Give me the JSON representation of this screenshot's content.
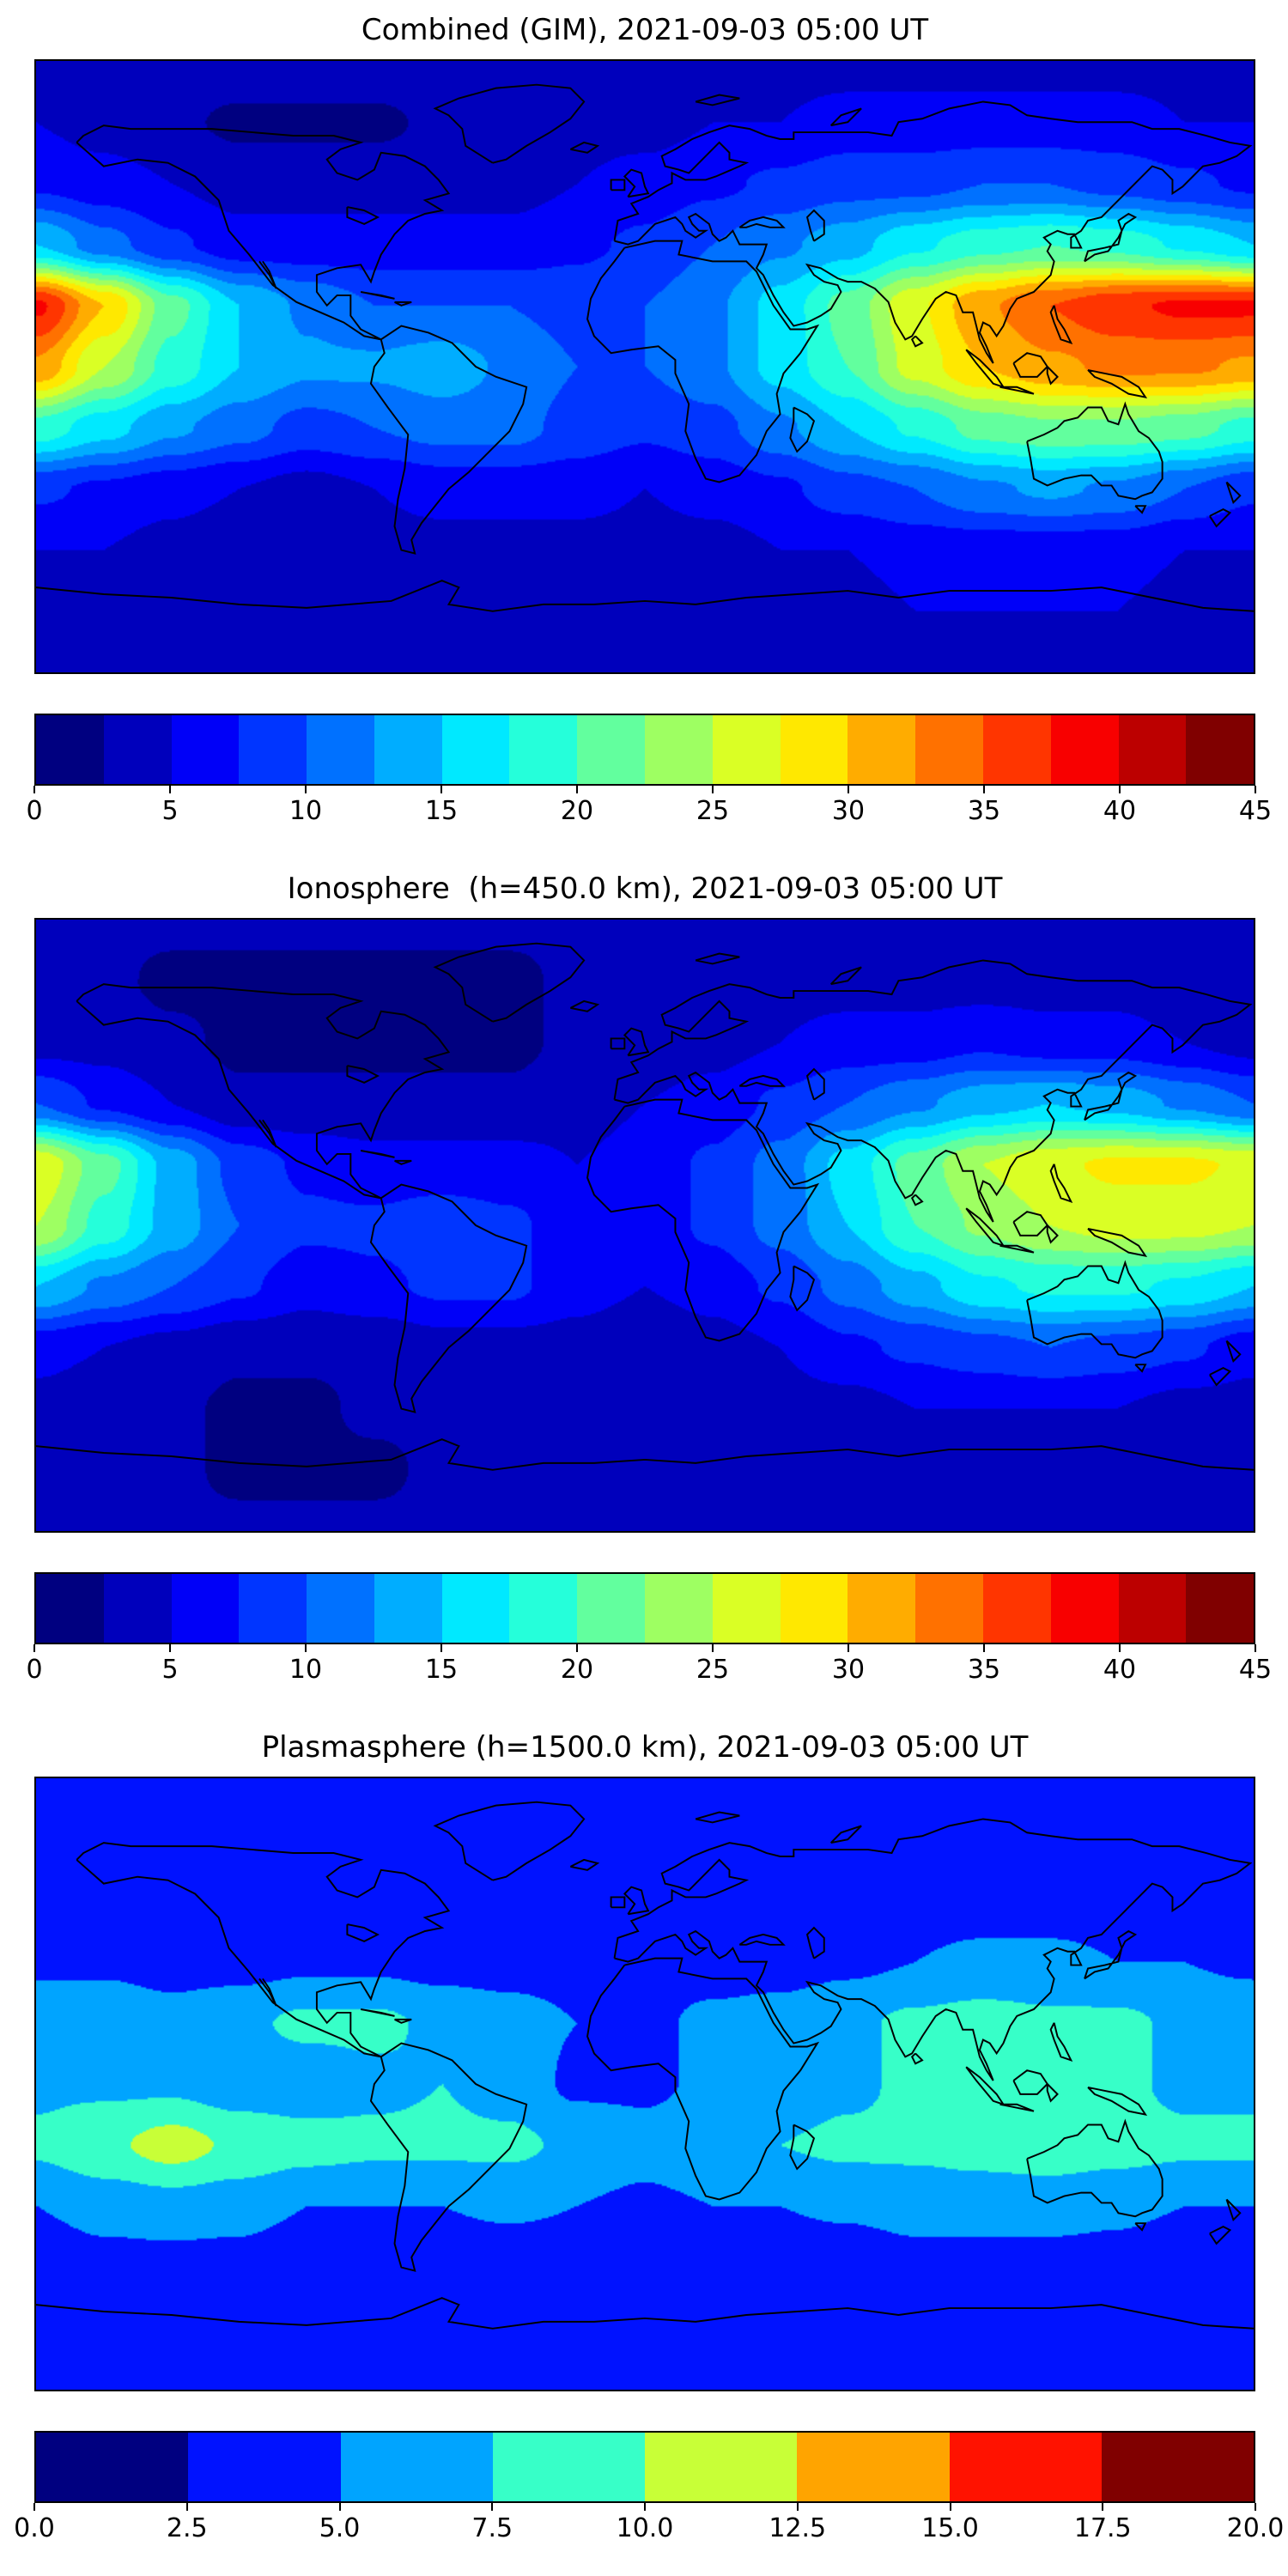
{
  "figure": {
    "background_color": "#ffffff",
    "colormap_name": "jet"
  },
  "chart_data": [
    {
      "type": "heatmap",
      "title": "Combined (GIM), 2021-09-03 05:00 UT",
      "date": "2021-09-03",
      "time_ut": "05:00",
      "projection": "equirectangular",
      "lon_range": [
        -180,
        180
      ],
      "lat_range": [
        -90,
        90
      ],
      "colormap": "jet",
      "vmin": 0,
      "vmax": 45,
      "contour_step": 2.5,
      "colorbar_orientation": "horizontal",
      "colorbar_ticks": [
        0,
        5,
        10,
        15,
        20,
        25,
        30,
        35,
        40,
        45
      ],
      "colorbar_tick_labels": [
        "0",
        "5",
        "10",
        "15",
        "20",
        "25",
        "30",
        "35",
        "40",
        "45"
      ],
      "grid": {
        "lons": [
          -180,
          -160,
          -140,
          -120,
          -100,
          -80,
          -60,
          -40,
          -20,
          0,
          20,
          40,
          60,
          80,
          100,
          120,
          140,
          160,
          180
        ],
        "lats": [
          90,
          72,
          54,
          36,
          18,
          0,
          -18,
          -36,
          -54,
          -72,
          -90
        ],
        "values": [
          [
            4,
            4,
            4,
            4,
            4,
            4,
            4,
            4,
            4,
            4,
            4,
            4,
            4,
            4,
            4,
            4,
            4,
            4,
            4
          ],
          [
            5,
            4,
            3,
            2,
            2,
            2,
            3,
            3,
            4,
            4,
            5,
            5,
            6,
            6,
            6,
            6,
            6,
            5,
            5
          ],
          [
            7,
            6,
            5,
            4,
            4,
            4,
            4,
            4,
            5,
            6,
            7,
            8,
            9,
            9,
            10,
            10,
            9,
            8,
            7
          ],
          [
            15,
            11,
            8,
            6,
            6,
            6,
            6,
            6,
            7,
            8,
            10,
            12,
            14,
            17,
            19,
            20,
            19,
            17,
            15
          ],
          [
            38,
            30,
            21,
            15,
            12,
            10,
            10,
            10,
            9,
            10,
            12,
            16,
            21,
            27,
            32,
            35,
            37,
            38,
            38
          ],
          [
            32,
            25,
            19,
            15,
            13,
            13,
            14,
            12,
            10,
            10,
            12,
            16,
            20,
            26,
            30,
            32,
            33,
            33,
            32
          ],
          [
            19,
            16,
            13,
            11,
            9,
            10,
            11,
            11,
            9,
            8,
            9,
            12,
            15,
            18,
            21,
            22,
            22,
            21,
            19
          ],
          [
            8,
            7,
            6,
            5,
            4,
            5,
            6,
            6,
            6,
            5,
            6,
            7,
            9,
            10,
            12,
            13,
            12,
            10,
            8
          ],
          [
            5,
            5,
            4,
            3,
            3,
            4,
            4,
            4,
            4,
            4,
            4,
            5,
            5,
            6,
            6,
            6,
            6,
            5,
            5
          ],
          [
            4,
            4,
            4,
            3,
            3,
            3,
            4,
            4,
            4,
            4,
            4,
            4,
            4,
            5,
            5,
            5,
            5,
            4,
            4
          ],
          [
            4,
            4,
            4,
            4,
            4,
            4,
            4,
            4,
            4,
            4,
            4,
            4,
            4,
            4,
            4,
            4,
            4,
            4,
            4
          ]
        ]
      }
    },
    {
      "type": "heatmap",
      "title": "Ionosphere  (h=450.0 km), 2021-09-03 05:00 UT",
      "date": "2021-09-03",
      "time_ut": "05:00",
      "altitude_km": 450.0,
      "projection": "equirectangular",
      "lon_range": [
        -180,
        180
      ],
      "lat_range": [
        -90,
        90
      ],
      "colormap": "jet",
      "vmin": 0,
      "vmax": 45,
      "contour_step": 2.5,
      "colorbar_orientation": "horizontal",
      "colorbar_ticks": [
        0,
        5,
        10,
        15,
        20,
        25,
        30,
        35,
        40,
        45
      ],
      "colorbar_tick_labels": [
        "0",
        "5",
        "10",
        "15",
        "20",
        "25",
        "30",
        "35",
        "40",
        "45"
      ],
      "grid": {
        "lons": [
          -180,
          -160,
          -140,
          -120,
          -100,
          -80,
          -60,
          -40,
          -20,
          0,
          20,
          40,
          60,
          80,
          100,
          120,
          140,
          160,
          180
        ],
        "lats": [
          90,
          72,
          54,
          36,
          18,
          0,
          -18,
          -36,
          -54,
          -72,
          -90
        ],
        "values": [
          [
            3,
            3,
            3,
            3,
            3,
            3,
            3,
            3,
            3,
            3,
            3,
            3,
            3,
            3,
            3,
            3,
            3,
            3,
            3
          ],
          [
            3,
            3,
            2,
            2,
            2,
            2,
            2,
            2,
            3,
            3,
            3,
            4,
            4,
            4,
            4,
            4,
            4,
            3,
            3
          ],
          [
            4,
            4,
            3,
            2,
            2,
            2,
            2,
            2,
            3,
            3,
            4,
            5,
            6,
            6,
            7,
            6,
            6,
            5,
            4
          ],
          [
            10,
            7,
            5,
            3,
            3,
            3,
            3,
            3,
            4,
            5,
            6,
            8,
            10,
            12,
            14,
            15,
            14,
            12,
            10
          ],
          [
            27,
            21,
            14,
            9,
            7,
            6,
            6,
            6,
            5,
            6,
            8,
            11,
            16,
            21,
            25,
            27,
            28,
            28,
            27
          ],
          [
            25,
            19,
            14,
            10,
            8,
            8,
            9,
            8,
            6,
            6,
            8,
            11,
            15,
            20,
            23,
            25,
            26,
            26,
            25
          ],
          [
            15,
            12,
            10,
            8,
            6,
            7,
            8,
            8,
            6,
            5,
            6,
            8,
            11,
            14,
            17,
            18,
            18,
            17,
            15
          ],
          [
            6,
            5,
            4,
            3,
            3,
            3,
            4,
            4,
            4,
            3,
            4,
            5,
            7,
            8,
            9,
            10,
            9,
            8,
            6
          ],
          [
            4,
            3,
            3,
            2,
            2,
            3,
            3,
            3,
            3,
            3,
            3,
            4,
            4,
            5,
            5,
            5,
            5,
            4,
            4
          ],
          [
            3,
            3,
            3,
            2,
            2,
            2,
            3,
            3,
            3,
            3,
            3,
            3,
            3,
            4,
            4,
            4,
            4,
            3,
            3
          ],
          [
            3,
            3,
            3,
            3,
            3,
            3,
            3,
            3,
            3,
            3,
            3,
            3,
            3,
            3,
            3,
            3,
            3,
            3,
            3
          ]
        ]
      }
    },
    {
      "type": "heatmap",
      "title": "Plasmasphere (h=1500.0 km), 2021-09-03 05:00 UT",
      "date": "2021-09-03",
      "time_ut": "05:00",
      "altitude_km": 1500.0,
      "projection": "equirectangular",
      "lon_range": [
        -180,
        180
      ],
      "lat_range": [
        -90,
        90
      ],
      "colormap": "jet",
      "vmin": 0,
      "vmax": 20,
      "contour_step": 2.5,
      "colorbar_orientation": "horizontal",
      "colorbar_ticks": [
        0,
        2.5,
        5,
        7.5,
        10,
        12.5,
        15,
        17.5,
        20
      ],
      "colorbar_tick_labels": [
        "0.0",
        "2.5",
        "5.0",
        "7.5",
        "10.0",
        "12.5",
        "15.0",
        "17.5",
        "20.0"
      ],
      "grid": {
        "lons": [
          -180,
          -160,
          -140,
          -120,
          -100,
          -80,
          -60,
          -40,
          -20,
          0,
          20,
          40,
          60,
          80,
          100,
          120,
          140,
          160,
          180
        ],
        "lats": [
          90,
          72,
          54,
          36,
          18,
          0,
          -18,
          -36,
          -54,
          -72,
          -90
        ],
        "values": [
          [
            3,
            3,
            3,
            3,
            3,
            3,
            3,
            3,
            3,
            3,
            3,
            3,
            3,
            3,
            3,
            3,
            3,
            3,
            3
          ],
          [
            3,
            3,
            3,
            3,
            3,
            3,
            3,
            3,
            3,
            3,
            3,
            3,
            3,
            3,
            3,
            3,
            3,
            3,
            3
          ],
          [
            4,
            4,
            3.5,
            3.5,
            3.5,
            3.5,
            3.5,
            3.5,
            3.5,
            3.5,
            3.5,
            3.5,
            3.5,
            4,
            4,
            4,
            4,
            4,
            4
          ],
          [
            4.5,
            4.5,
            4,
            4,
            4.5,
            4.5,
            4,
            4,
            4,
            4,
            4,
            4,
            4.5,
            5,
            5.5,
            5.5,
            5,
            5,
            4.5
          ],
          [
            7,
            7,
            6,
            7,
            8,
            8,
            7,
            6,
            5,
            4.5,
            5.5,
            6,
            7,
            8,
            8.5,
            8,
            8,
            7,
            7
          ],
          [
            7,
            7,
            7,
            6,
            6,
            7,
            7.5,
            6.5,
            4.5,
            4.5,
            5.5,
            6,
            7,
            8,
            8,
            8,
            8,
            7,
            7
          ],
          [
            8,
            9.5,
            11,
            9.5,
            8.5,
            8,
            8,
            8,
            7,
            6,
            7,
            7.5,
            8,
            8,
            8.5,
            9,
            8.5,
            8,
            8
          ],
          [
            5,
            6,
            6.5,
            6,
            5,
            5,
            5,
            5.5,
            5,
            4.5,
            5,
            5,
            5.5,
            6,
            6,
            6,
            5.5,
            5,
            5
          ],
          [
            3,
            4,
            4,
            4,
            3,
            3,
            3,
            3,
            3,
            3,
            3,
            3,
            3,
            4,
            4,
            4,
            4,
            3,
            3
          ],
          [
            3,
            3,
            3,
            3,
            3,
            3,
            3,
            3,
            3,
            3,
            3,
            3,
            3,
            3,
            3,
            3,
            3,
            3,
            3
          ],
          [
            3,
            3,
            3,
            3,
            3,
            3,
            3,
            3,
            3,
            3,
            3,
            3,
            3,
            3,
            3,
            3,
            3,
            3,
            3
          ]
        ]
      }
    }
  ]
}
